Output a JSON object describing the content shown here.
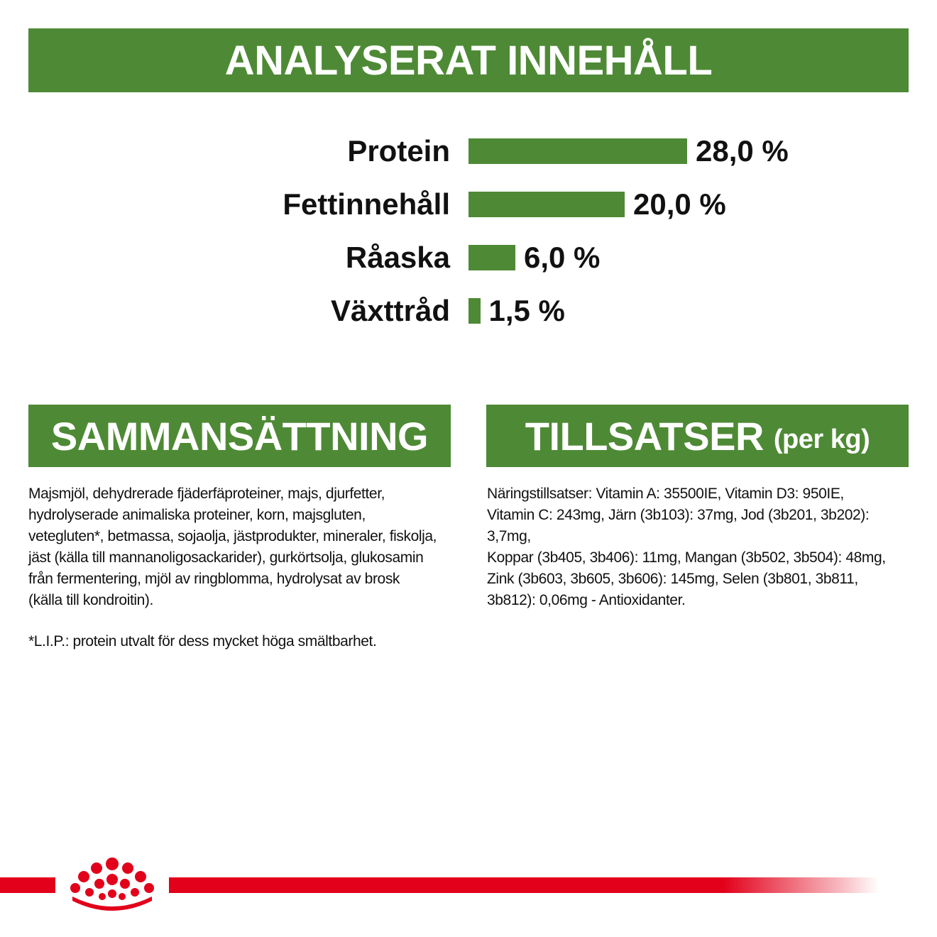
{
  "analysis": {
    "title": "ANALYSERAT INNEHÅLL",
    "rows": [
      {
        "label": "Protein",
        "value": 28.0,
        "display": "28,0 %"
      },
      {
        "label": "Fettinnehåll",
        "value": 20.0,
        "display": "20,0 %"
      },
      {
        "label": "Råaska",
        "value": 6.0,
        "display": "6,0 %"
      },
      {
        "label": "Växttråd",
        "value": 1.5,
        "display": "1,5 %"
      }
    ]
  },
  "composition": {
    "title": "SAMMANSÄTTNING",
    "lines": [
      "Majsmjöl, dehydrerade fjäderfäproteiner, majs, djurfetter,",
      "hydrolyserade animaliska proteiner, korn, majsgluten,",
      "vetegluten*, betmassa, sojaolja, jästprodukter, mineraler, fiskolja,",
      "jäst (källa till mannanoligosackarider), gurkörtsolja, glukosamin",
      "från fermentering, mjöl av ringblomma, hydrolysat av brosk",
      "(källa till kondroitin)."
    ],
    "footnote": "*L.I.P.: protein utvalt för dess mycket höga smältbarhet."
  },
  "additives": {
    "title": "TILLSATSER",
    "title_suffix": "(per kg)",
    "lines": [
      "Näringstillsatser: Vitamin A: 35500IE, Vitamin D3: 950IE,",
      "Vitamin C: 243mg, Järn (3b103): 37mg, Jod (3b201, 3b202): 3,7mg,",
      "Koppar (3b405, 3b406): 11mg, Mangan (3b502, 3b504): 48mg,",
      "Zink (3b603, 3b605, 3b606): 145mg, Selen (3b801, 3b811,",
      "3b812): 0,06mg - Antioxidanter."
    ]
  },
  "colors": {
    "banner_green": "#4e8a35",
    "brand_red": "#e2001a"
  },
  "icons": {
    "brand_logo": "royal-crown-icon"
  }
}
